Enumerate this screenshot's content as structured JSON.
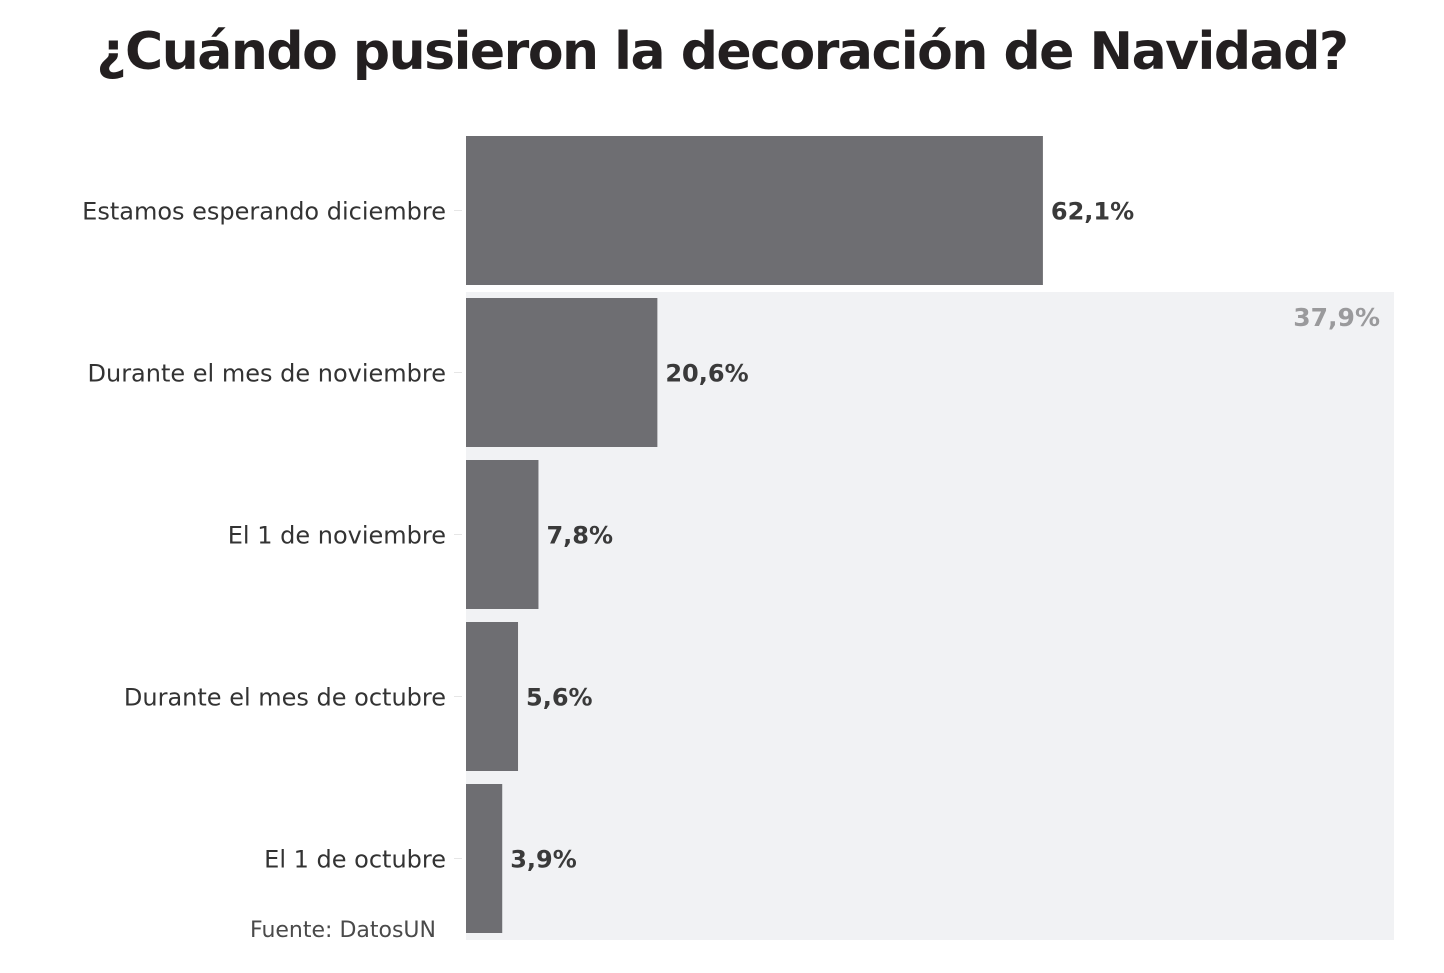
{
  "title": "¿Cuándo pusieron la decoración de Navidad?",
  "source": "Fuente: DatosUN",
  "chart_data": {
    "type": "bar",
    "orientation": "horizontal",
    "categories": [
      "Estamos esperando diciembre",
      "Durante el mes de noviembre",
      "El 1 de noviembre",
      "Durante el mes de octubre",
      "El 1 de octubre"
    ],
    "values": [
      62.1,
      20.6,
      7.8,
      5.6,
      3.9
    ],
    "value_labels": [
      "62,1%",
      "20,6%",
      "7,8%",
      "5,6%",
      "3,9%"
    ],
    "xlim": [
      0,
      100
    ],
    "grid": false,
    "highlight_region": {
      "categories": [
        "Durante el mes de noviembre",
        "El 1 de noviembre",
        "Durante el mes de octubre",
        "El 1 de octubre"
      ],
      "label": "37,9%"
    },
    "colors": {
      "bar": "#6e6e72",
      "highlight_bg": "#f1f2f4",
      "label": "#333333",
      "value_label": "#3a3a3a",
      "highlight_label": "#9a9a9c"
    }
  }
}
